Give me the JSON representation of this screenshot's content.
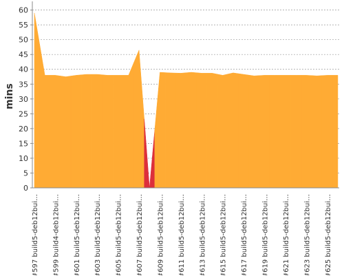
{
  "chart_data": {
    "type": "area",
    "y_label": "mins",
    "categories": [
      "#597 build5-deb12bui…",
      null,
      "#599 build4-deb12bui…",
      null,
      "#601 build5-deb12bui…",
      null,
      "#603 build5-deb12bui…",
      null,
      "#605 build5-deb12bui…",
      null,
      "#607 build5-deb12bui…",
      null,
      "#609 build5-deb12bui…",
      null,
      "#611 build5-deb12bui…",
      null,
      "#613 build5-deb12bui…",
      null,
      "#615 build5-deb12bui…",
      null,
      "#617 build5-deb12bui…",
      null,
      "#619 build5-deb12bui…",
      null,
      "#621 build5-deb12bui…",
      null,
      "#623 build5-deb12bui…",
      null,
      "#625 build5-deb12bui…",
      null
    ],
    "values": [
      59,
      38,
      38,
      37.5,
      38,
      38.3,
      38.3,
      38,
      38,
      38,
      46.5,
      0,
      39,
      38.8,
      38.7,
      39,
      38.7,
      38.7,
      38,
      38.8,
      38.3,
      37.8,
      38,
      38,
      38,
      38,
      38,
      37.8,
      38,
      38
    ],
    "colors": [
      "#ffab34",
      "#ffab34",
      "#ffab34",
      "#ffab34",
      "#ffab34",
      "#ffab34",
      "#ffab34",
      "#ffab34",
      "#ffab34",
      "#ffab34",
      "#ffab34",
      "#dc2f3c",
      "#ffab34",
      "#ffab34",
      "#ffab34",
      "#ffab34",
      "#ffab34",
      "#ffab34",
      "#ffab34",
      "#ffab34",
      "#ffab34",
      "#ffab34",
      "#ffab34",
      "#ffab34",
      "#ffab34",
      "#ffab34",
      "#ffab34",
      "#ffab34",
      "#ffab34",
      "#ffab34"
    ],
    "ylim": [
      0,
      62
    ],
    "yticks": [
      0,
      5,
      10,
      15,
      20,
      25,
      30,
      35,
      40,
      45,
      50,
      55,
      60
    ],
    "grid": true
  }
}
